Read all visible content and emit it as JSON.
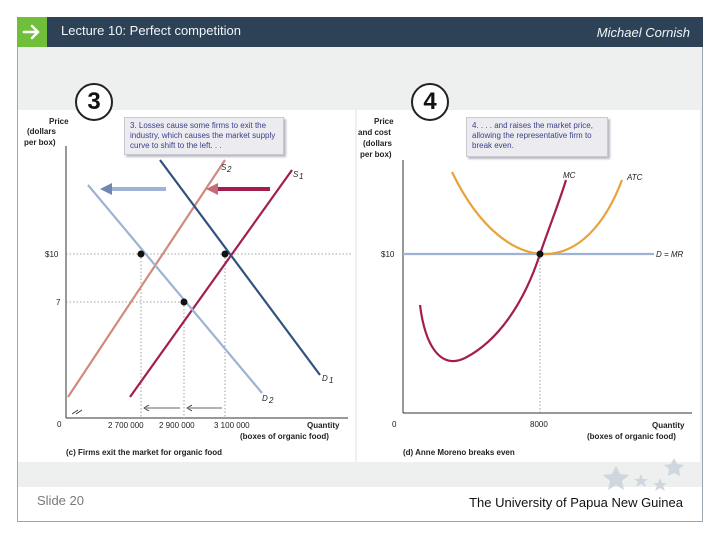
{
  "header": {
    "lecture_title": "Lecture 10:  Perfect competition",
    "author": "Michael Cornish"
  },
  "footer": {
    "slide_number": "Slide 20",
    "university": "The University of Papua New Guinea"
  },
  "badges": {
    "left": "3",
    "right": "4"
  },
  "colors": {
    "header": "#2d4257",
    "arrow": "#6fbf3a",
    "supply_original": "#a31e4f",
    "supply_shifted": "#d08a7e",
    "demand_original": "#31517d",
    "demand_shifted": "#9db2d4",
    "atc": "#e9a23b",
    "mc": "#a31e4f",
    "price_line": "#9db2d4"
  },
  "icons": {
    "header_arrow": "right-arrow-icon",
    "decor": "stars-decoration-icon"
  },
  "chart_data": [
    {
      "type": "line",
      "panel_caption": "(c) Firms exit the market for organic food",
      "callout": "3. Losses cause some firms to exit the industry, which causes the market supply curve to shift to the left. . .",
      "ylabel": "Price (dollars per box)",
      "xlabel": "Quantity (boxes of organic food)",
      "x_ticks": [
        "2 700 000",
        "2 900 000",
        "3 100 000"
      ],
      "y_ticks": [
        "$10",
        "7"
      ],
      "origin_label": "0",
      "series": [
        {
          "name": "S2",
          "points": [
            [
              2550000,
              4.2
            ],
            [
              2950000,
              13.5
            ]
          ]
        },
        {
          "name": "S1",
          "points": [
            [
              2750000,
              4.2
            ],
            [
              3200000,
              13.5
            ]
          ]
        },
        {
          "name": "D1",
          "points": [
            [
              2900000,
              13.5
            ],
            [
              3300000,
              3.0
            ]
          ]
        },
        {
          "name": "D2",
          "points": [
            [
              2600000,
              13.0
            ],
            [
              3100000,
              2.5
            ]
          ]
        }
      ],
      "equilibria": [
        {
          "x": 2700000,
          "y": 10
        },
        {
          "x": 3100000,
          "y": 10
        },
        {
          "x": 2900000,
          "y": 7
        }
      ]
    },
    {
      "type": "line",
      "panel_caption": "(d) Anne Moreno breaks even",
      "callout": "4. . . . and raises the market price, allowing the representative firm to break even.",
      "ylabel": "Price and cost (dollars per box)",
      "xlabel": "Quantity (boxes of organic food)",
      "x_ticks": [
        "8000"
      ],
      "y_ticks": [
        "$10"
      ],
      "origin_label": "0",
      "series": [
        {
          "name": "MC"
        },
        {
          "name": "ATC"
        },
        {
          "name": "D = MR"
        }
      ],
      "equilibria": [
        {
          "x": 8000,
          "y": 10
        }
      ]
    }
  ]
}
